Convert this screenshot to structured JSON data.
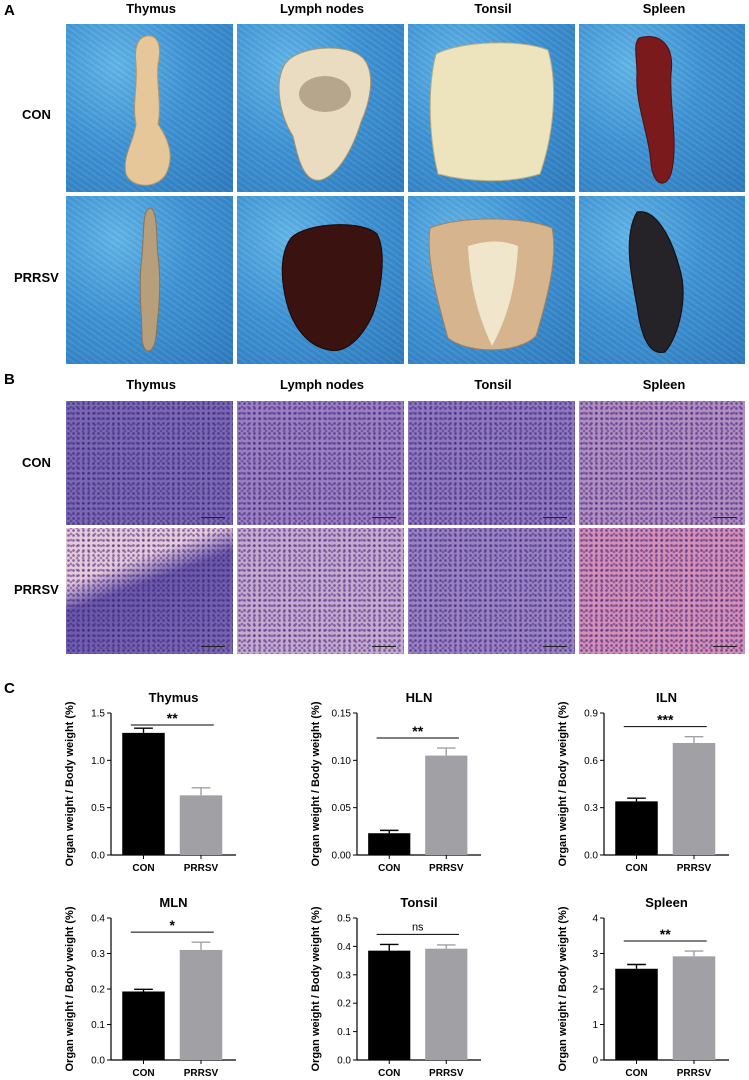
{
  "panels": {
    "a": "A",
    "b": "B",
    "c": "C"
  },
  "photo_grid": {
    "columns": [
      "Thymus",
      "Lymph nodes",
      "Tonsil",
      "Spleen"
    ],
    "rows": [
      "CON",
      "PRRSV"
    ]
  },
  "histo_grid": {
    "columns": [
      "Thymus",
      "Lymph nodes",
      "Tonsil",
      "Spleen"
    ],
    "rows": [
      "CON",
      "PRRSV"
    ]
  },
  "colors": {
    "con_bar": "#000000",
    "prrsv_bar": "#a0a0a5",
    "photo_background": "#3f94d6",
    "he_stain": "#8e6fb8"
  },
  "chart_data": [
    {
      "type": "bar",
      "title": "Thymus",
      "ylabel": "Organ weight / Body weight (%)",
      "categories": [
        "CON",
        "PRRSV"
      ],
      "values": [
        1.29,
        0.63
      ],
      "errors": [
        0.05,
        0.08
      ],
      "ylim": [
        0,
        1.5
      ],
      "yticks": [
        "0.0",
        "0.5",
        "1.0",
        "1.5"
      ],
      "significance": "**"
    },
    {
      "type": "bar",
      "title": "HLN",
      "ylabel": "Organ weight / Body weight (%)",
      "categories": [
        "CON",
        "PRRSV"
      ],
      "values": [
        0.023,
        0.105
      ],
      "errors": [
        0.003,
        0.008
      ],
      "ylim": [
        0,
        0.15
      ],
      "yticks": [
        "0.00",
        "0.05",
        "0.10",
        "0.15"
      ],
      "significance": "**"
    },
    {
      "type": "bar",
      "title": "ILN",
      "ylabel": "Organ weight / Body weight (%)",
      "categories": [
        "CON",
        "PRRSV"
      ],
      "values": [
        0.34,
        0.71
      ],
      "errors": [
        0.02,
        0.04
      ],
      "ylim": [
        0,
        0.9
      ],
      "yticks": [
        "0.0",
        "0.3",
        "0.6",
        "0.9"
      ],
      "significance": "***"
    },
    {
      "type": "bar",
      "title": "MLN",
      "ylabel": "Organ weight / Body weight (%)",
      "categories": [
        "CON",
        "PRRSV"
      ],
      "values": [
        0.193,
        0.31
      ],
      "errors": [
        0.006,
        0.022
      ],
      "ylim": [
        0,
        0.4
      ],
      "yticks": [
        "0.0",
        "0.1",
        "0.2",
        "0.3",
        "0.4"
      ],
      "significance": "*"
    },
    {
      "type": "bar",
      "title": "Tonsil",
      "ylabel": "Organ weight / Body weight (%)",
      "categories": [
        "CON",
        "PRRSV"
      ],
      "values": [
        0.385,
        0.392
      ],
      "errors": [
        0.022,
        0.013
      ],
      "ylim": [
        0,
        0.5
      ],
      "yticks": [
        "0.0",
        "0.1",
        "0.2",
        "0.3",
        "0.4",
        "0.5"
      ],
      "significance": "ns"
    },
    {
      "type": "bar",
      "title": "Spleen",
      "ylabel": "Organ weight / Body weight (%)",
      "categories": [
        "CON",
        "PRRSV"
      ],
      "values": [
        2.57,
        2.92
      ],
      "errors": [
        0.12,
        0.15
      ],
      "ylim": [
        0,
        4
      ],
      "yticks": [
        "0",
        "1",
        "2",
        "3",
        "4"
      ],
      "significance": "**"
    }
  ]
}
